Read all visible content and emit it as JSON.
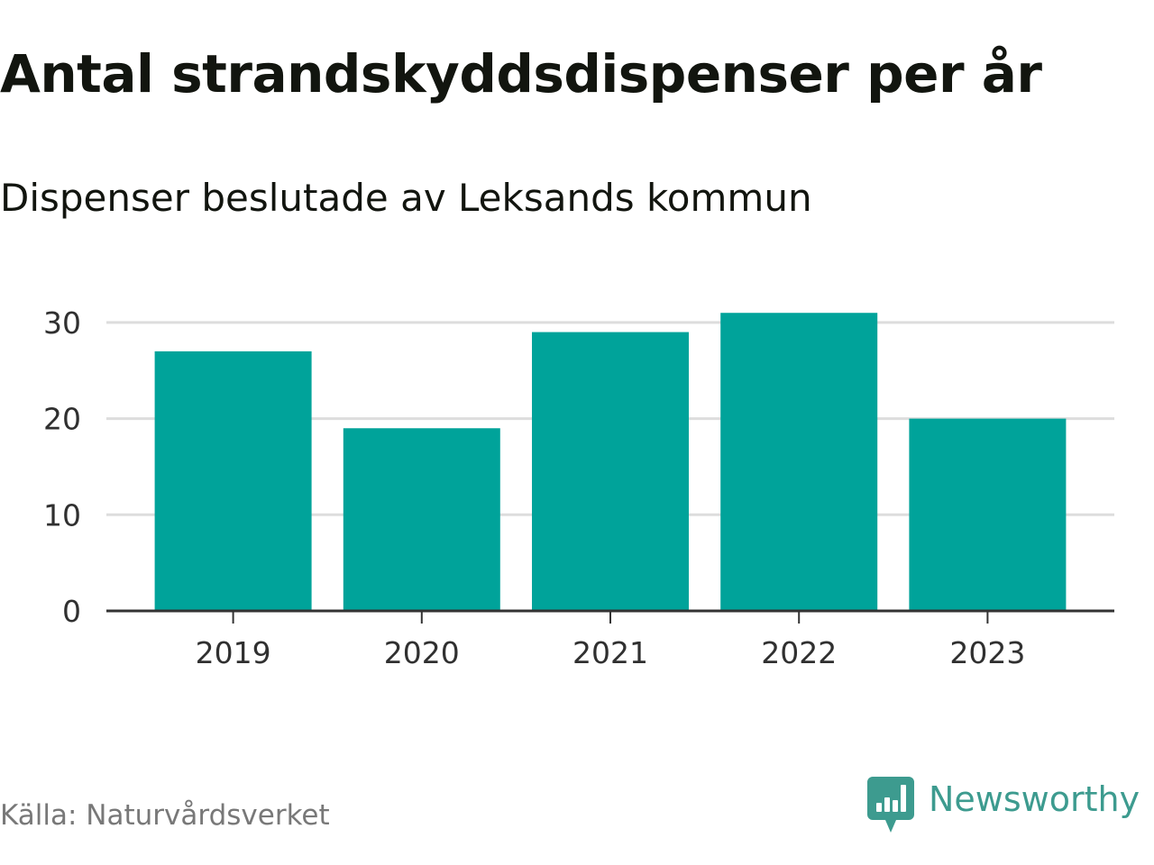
{
  "title": "Antal strandskyddsdispenser per år",
  "subtitle": "Dispenser beslutade av Leksands kommun",
  "source": "Källa: Naturvårdsverket",
  "brand": "Newsworthy",
  "colors": {
    "bar": "#00a39a",
    "title": "#12150f",
    "axis_text": "#303030",
    "grid": "#dddddd",
    "source": "#787878",
    "brand": "#3d9b8f"
  },
  "chart_data": {
    "type": "bar",
    "title": "Antal strandskyddsdispenser per år",
    "subtitle": "Dispenser beslutade av Leksands kommun",
    "categories": [
      "2019",
      "2020",
      "2021",
      "2022",
      "2023"
    ],
    "values": [
      27,
      19,
      29,
      31,
      20
    ],
    "xlabel": "",
    "ylabel": "",
    "ylim": [
      0,
      30
    ],
    "yticks": [
      0,
      10,
      20,
      30
    ],
    "grid": true
  }
}
